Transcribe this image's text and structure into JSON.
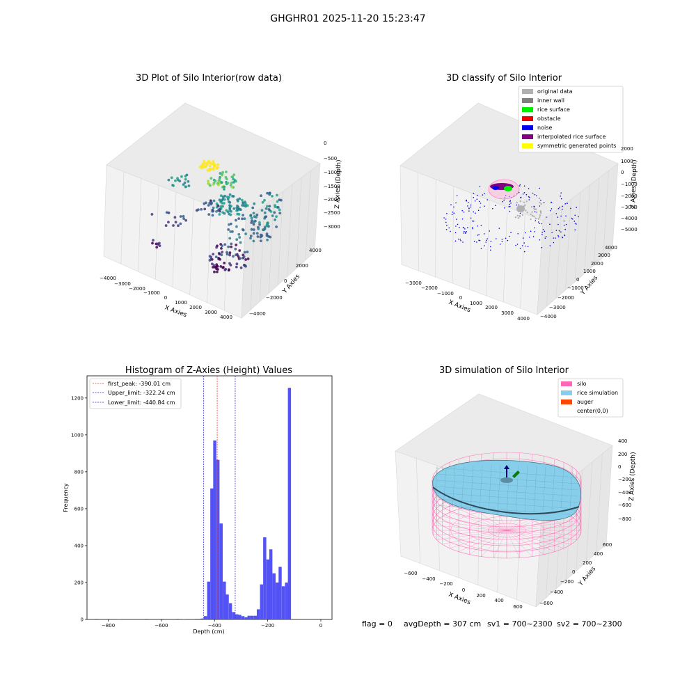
{
  "suptitle": "GHGHR01 2025-11-20 15:23:47",
  "colors": {
    "hist_bar": "#4c4cf5",
    "first_peak": "#e8382b",
    "limit": "#2b2bd6",
    "silo": "#ff69b4",
    "rice": "#87ceeb",
    "auger": "#ff4500"
  },
  "panel1": {
    "title": "3D Plot of Silo Interior(row data)",
    "xlabel": "X Axies",
    "ylabel": "Y Axies",
    "zlabel": "Z Axies (Depth)",
    "xticks": [
      "−4000",
      "−3000",
      "−2000",
      "−1000",
      "0",
      "1000",
      "2000",
      "3000",
      "4000"
    ],
    "yticks": [
      "−4000",
      "−2000",
      "0",
      "2000",
      "4000"
    ],
    "zticks": [
      "0",
      "−500",
      "−1000",
      "−1500",
      "−2000",
      "−2500",
      "−3000"
    ],
    "colormap": "viridis"
  },
  "panel2": {
    "title": "3D classify of Silo Interior",
    "xlabel": "X Axies",
    "ylabel": "Y Axies",
    "zlabel": "Z Axies (Depth)",
    "xticks": [
      "−3000",
      "−2000",
      "−1000",
      "0",
      "1000",
      "2000",
      "3000",
      "4000"
    ],
    "yticks": [
      "−4000",
      "−3000",
      "−2000",
      "−1000",
      "0",
      "1000",
      "2000",
      "3000",
      "4000"
    ],
    "zticks": [
      "2000",
      "1000",
      "0",
      "−1000",
      "−2000",
      "−3000",
      "−4000",
      "−5000"
    ],
    "legend": [
      {
        "label": "original data",
        "color": "#b0b0b0"
      },
      {
        "label": "inner wall",
        "color": "#808080"
      },
      {
        "label": "rice surface",
        "color": "#00ee00"
      },
      {
        "label": "obstacle",
        "color": "#ee0000"
      },
      {
        "label": "noise",
        "color": "#0000ee"
      },
      {
        "label": "interpolated rice surface",
        "color": "#800080"
      },
      {
        "label": "symmetric generated points",
        "color": "#ffff00"
      }
    ]
  },
  "chart_data": {
    "type": "bar",
    "title": "Histogram of Z-Axies (Height) Values",
    "xlabel": "Depth (cm)",
    "ylabel": "Frequency",
    "xlim": [
      -880,
      42
    ],
    "ylim": [
      0,
      1320
    ],
    "xticks": [
      -800,
      -600,
      -400,
      -200,
      0
    ],
    "yticks": [
      0,
      200,
      400,
      600,
      800,
      1000,
      1200
    ],
    "bin_width": 11.7,
    "bins": [
      {
        "x": -850,
        "v": 3
      },
      {
        "x": -765,
        "v": 2
      },
      {
        "x": -662,
        "v": 3
      },
      {
        "x": -603,
        "v": 3
      },
      {
        "x": -545,
        "v": 3
      },
      {
        "x": -522,
        "v": 2
      },
      {
        "x": -475,
        "v": 3
      },
      {
        "x": -463,
        "v": 3
      },
      {
        "x": -452,
        "v": 5
      },
      {
        "x": -440,
        "v": 18
      },
      {
        "x": -428,
        "v": 205
      },
      {
        "x": -416,
        "v": 710
      },
      {
        "x": -405,
        "v": 970
      },
      {
        "x": -393,
        "v": 865
      },
      {
        "x": -381,
        "v": 520
      },
      {
        "x": -369,
        "v": 205
      },
      {
        "x": -358,
        "v": 135
      },
      {
        "x": -346,
        "v": 88
      },
      {
        "x": -334,
        "v": 40
      },
      {
        "x": -322,
        "v": 28
      },
      {
        "x": -311,
        "v": 25
      },
      {
        "x": -299,
        "v": 18
      },
      {
        "x": -287,
        "v": 12
      },
      {
        "x": -276,
        "v": 20
      },
      {
        "x": -264,
        "v": 20
      },
      {
        "x": -252,
        "v": 20
      },
      {
        "x": -241,
        "v": 55
      },
      {
        "x": -229,
        "v": 190
      },
      {
        "x": -217,
        "v": 445
      },
      {
        "x": -205,
        "v": 325
      },
      {
        "x": -194,
        "v": 380
      },
      {
        "x": -182,
        "v": 250
      },
      {
        "x": -170,
        "v": 200
      },
      {
        "x": -159,
        "v": 285
      },
      {
        "x": -147,
        "v": 180
      },
      {
        "x": -135,
        "v": 200
      },
      {
        "x": -124,
        "v": 1255
      }
    ],
    "vlines": [
      {
        "label": "first_peak: -390.01 cm",
        "x": -390.01,
        "color": "first_peak"
      },
      {
        "label": "Upper_limit: -322.24 cm",
        "x": -322.24,
        "color": "limit"
      },
      {
        "label": "Lower_limit: -440.84 cm",
        "x": -440.84,
        "color": "limit"
      }
    ]
  },
  "panel4": {
    "title": "3D simulation of Silo Interior",
    "xlabel": "X Axies",
    "ylabel": "Y Axies",
    "zlabel": "Z Axies (Depth)",
    "xticks": [
      "−600",
      "−400",
      "−200",
      "0",
      "200",
      "400",
      "600"
    ],
    "yticks": [
      "−600",
      "−400",
      "−200",
      "0",
      "200",
      "400",
      "600"
    ],
    "zticks": [
      "400",
      "200",
      "0",
      "−200",
      "−400",
      "−600",
      "−800"
    ],
    "legend": [
      {
        "label": "silo",
        "color": "#ff69b4"
      },
      {
        "label": "rice simulation",
        "color": "#87ceeb"
      },
      {
        "label": "auger",
        "color": "#ff4500"
      },
      {
        "label": "center(0,0)",
        "color": "#ffffff"
      }
    ]
  },
  "footer": {
    "flag": "flag = 0",
    "avg_depth": "avgDepth = 307 cm",
    "sv1": "sv1 = 700~2300",
    "sv2": "sv2 = 700~2300"
  }
}
